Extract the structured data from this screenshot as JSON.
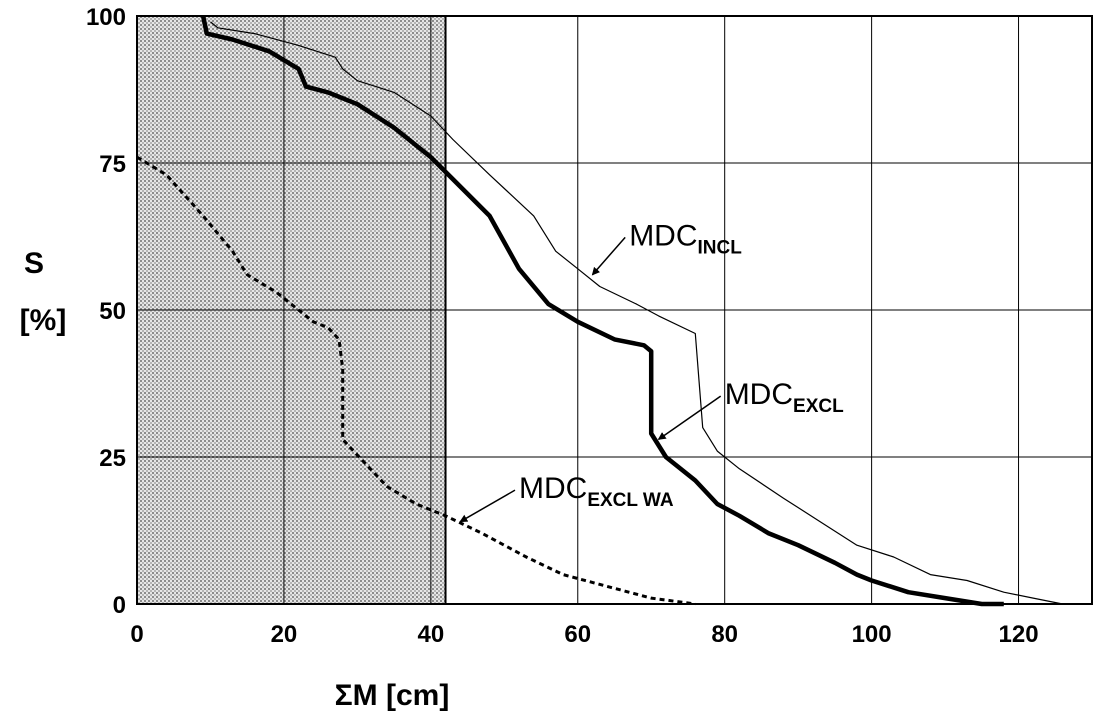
{
  "chart_data": {
    "type": "line",
    "xlabel": "ΣM [cm]",
    "ylabel_lines": [
      "S",
      "[%]"
    ],
    "xlim": [
      0,
      130
    ],
    "ylim": [
      0,
      100
    ],
    "x_ticks": [
      0,
      20,
      40,
      60,
      80,
      100,
      120
    ],
    "y_ticks": [
      0,
      25,
      50,
      75,
      100
    ],
    "grid": true,
    "shaded_region": {
      "x_from": 0,
      "x_to": 42,
      "pattern": "dotted-gray"
    },
    "series": [
      {
        "name": "MDC_INCL",
        "label_main": "MDC",
        "label_sub": "INCL",
        "color": "#000000",
        "style": "thin",
        "x": [
          10,
          11,
          16,
          22,
          27,
          28,
          30,
          35,
          40,
          43,
          48,
          54,
          57,
          60,
          63,
          68,
          71,
          76,
          77,
          79,
          82,
          88,
          93,
          98,
          103,
          108,
          113,
          118,
          122,
          126
        ],
        "y": [
          99,
          98,
          97,
          95,
          93,
          91,
          89,
          87,
          83,
          79,
          73,
          66,
          60,
          57,
          54,
          51,
          49,
          46,
          30,
          26,
          23,
          18,
          14,
          10,
          8,
          5,
          4,
          2,
          1,
          0
        ]
      },
      {
        "name": "MDC_EXCL",
        "label_main": "MDC",
        "label_sub": "EXCL",
        "color": "#000000",
        "style": "thick",
        "x": [
          9,
          9.5,
          13,
          18,
          22,
          23,
          26,
          30,
          35,
          40,
          44,
          48,
          52,
          56,
          60,
          65,
          69,
          70,
          70,
          72,
          76,
          79,
          82,
          86,
          90,
          95,
          98,
          100,
          105,
          110,
          115,
          118
        ],
        "y": [
          100,
          97,
          96,
          94,
          91,
          88,
          87,
          85,
          81,
          76,
          71,
          66,
          57,
          51,
          48,
          45,
          44,
          43,
          29,
          25,
          21,
          17,
          15,
          12,
          10,
          7,
          5,
          4,
          2,
          1,
          0,
          0
        ]
      },
      {
        "name": "MDC_EXCL WA",
        "label_main": "MDC",
        "label_sub": "EXCL WA",
        "color": "#000000",
        "style": "dashed",
        "x": [
          0,
          4,
          9,
          13,
          15,
          19,
          22,
          24,
          26,
          27.5,
          28,
          28,
          31,
          34,
          38,
          42,
          47,
          53,
          58,
          64,
          70,
          76
        ],
        "y": [
          76,
          73,
          66,
          60,
          56,
          53,
          50,
          48,
          47,
          45,
          40,
          28,
          24,
          20,
          17,
          15,
          12,
          8,
          5,
          3,
          1,
          0
        ]
      }
    ],
    "annotations": [
      {
        "series": "MDC_INCL",
        "main": "MDC",
        "sub": "INCL",
        "point": [
          62,
          56
        ],
        "label_pos": [
          67,
          61
        ]
      },
      {
        "series": "MDC_EXCL",
        "main": "MDC",
        "sub": "EXCL",
        "point": [
          71,
          28
        ],
        "label_pos": [
          80,
          34
        ]
      },
      {
        "series": "MDC_EXCL WA",
        "main": "MDC",
        "sub": "EXCL WA",
        "point": [
          44,
          14
        ],
        "label_pos": [
          52,
          18
        ]
      }
    ]
  }
}
